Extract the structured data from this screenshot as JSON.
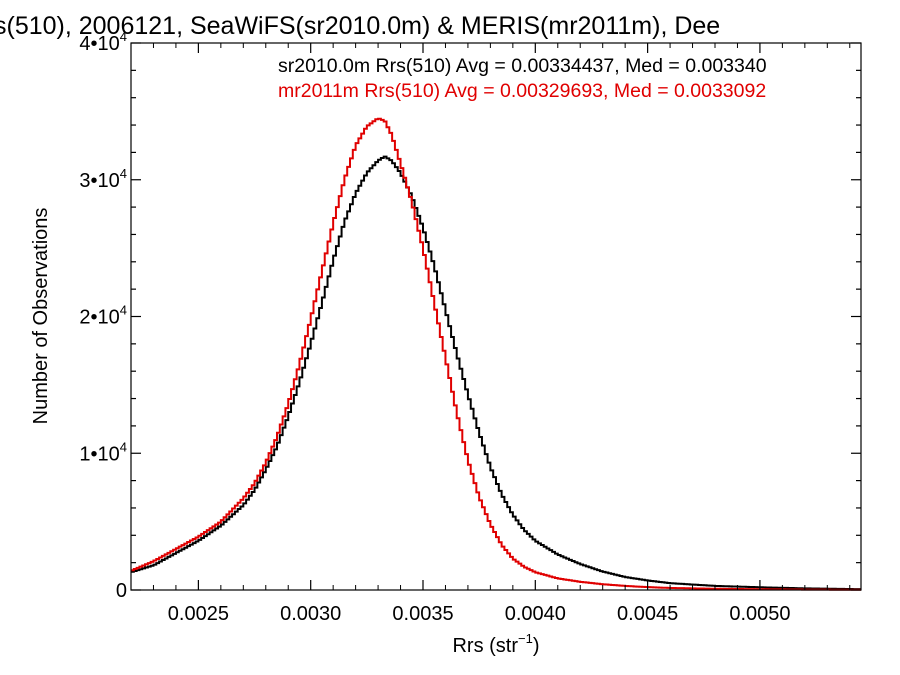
{
  "chart_data": {
    "type": "line",
    "title": "s(510), 2006121, SeaWiFS(sr2010.0m) & MERIS(mr2011m), Dee",
    "xlabel": "Rrs (str",
    "xlabel_sup": "−1",
    "xlabel_close": ")",
    "ylabel": "Number of Observations",
    "xlim": [
      0.0022,
      0.00545
    ],
    "ylim": [
      0,
      40000
    ],
    "x_ticks": [
      0.0025,
      0.003,
      0.0035,
      0.004,
      0.0045,
      0.005
    ],
    "x_tick_labels": [
      "0.0025",
      "0.0030",
      "0.0035",
      "0.0040",
      "0.0045",
      "0.0050"
    ],
    "y_ticks": [
      {
        "value": 0,
        "base": "0",
        "exp": ""
      },
      {
        "value": 10000,
        "base": "1•10",
        "exp": "4"
      },
      {
        "value": 20000,
        "base": "2•10",
        "exp": "4"
      },
      {
        "value": 30000,
        "base": "3•10",
        "exp": "4"
      },
      {
        "value": 40000,
        "base": "4•10",
        "exp": "4"
      }
    ],
    "grid": false,
    "annotations": [
      {
        "text": "sr2010.0m Rrs(510) Avg = 0.00334437, Med = 0.003340",
        "color": "#000000"
      },
      {
        "text": "mr2011m Rrs(510) Avg = 0.00329693, Med = 0.0033092",
        "color": "#e00000"
      }
    ],
    "series": [
      {
        "color": "#000000",
        "x": [
          0.0022,
          0.0023,
          0.0024,
          0.0025,
          0.0026,
          0.0027,
          0.00275,
          0.0028,
          0.00285,
          0.0029,
          0.00295,
          0.003,
          0.00305,
          0.0031,
          0.00315,
          0.0032,
          0.00325,
          0.0033,
          0.00333,
          0.00336,
          0.0034,
          0.00345,
          0.0035,
          0.00355,
          0.0036,
          0.00365,
          0.0037,
          0.00375,
          0.0038,
          0.00385,
          0.0039,
          0.00395,
          0.004,
          0.0041,
          0.0042,
          0.0043,
          0.0044,
          0.0045,
          0.0046,
          0.0048,
          0.005,
          0.0052,
          0.00545
        ],
        "y": [
          1300,
          1800,
          2700,
          3600,
          4700,
          6200,
          7300,
          8800,
          10500,
          12700,
          15200,
          18000,
          21000,
          24100,
          26900,
          29000,
          30500,
          31400,
          31700,
          31400,
          30500,
          28800,
          26500,
          23700,
          20500,
          17300,
          14300,
          11500,
          9000,
          7000,
          5500,
          4400,
          3600,
          2600,
          1900,
          1350,
          950,
          700,
          500,
          300,
          200,
          120,
          60
        ]
      },
      {
        "color": "#e00000",
        "x": [
          0.0022,
          0.0023,
          0.0024,
          0.0025,
          0.0026,
          0.0027,
          0.00275,
          0.0028,
          0.00285,
          0.0029,
          0.00295,
          0.003,
          0.00305,
          0.0031,
          0.00315,
          0.0032,
          0.00325,
          0.0033,
          0.00333,
          0.00336,
          0.0034,
          0.00345,
          0.0035,
          0.00355,
          0.0036,
          0.00365,
          0.0037,
          0.00375,
          0.0038,
          0.00385,
          0.0039,
          0.00395,
          0.004,
          0.0041,
          0.0042,
          0.0043,
          0.0044,
          0.0045,
          0.0046,
          0.0048,
          0.005,
          0.0052,
          0.00545
        ],
        "y": [
          1400,
          2100,
          3000,
          3900,
          5000,
          6700,
          7800,
          9300,
          11200,
          13600,
          16500,
          19800,
          23300,
          26800,
          30000,
          32500,
          33900,
          34500,
          34300,
          33300,
          31200,
          28400,
          25000,
          21000,
          17000,
          13000,
          9500,
          6800,
          4800,
          3300,
          2300,
          1700,
          1300,
          850,
          600,
          420,
          300,
          210,
          150,
          90,
          55,
          30,
          15
        ]
      }
    ]
  }
}
